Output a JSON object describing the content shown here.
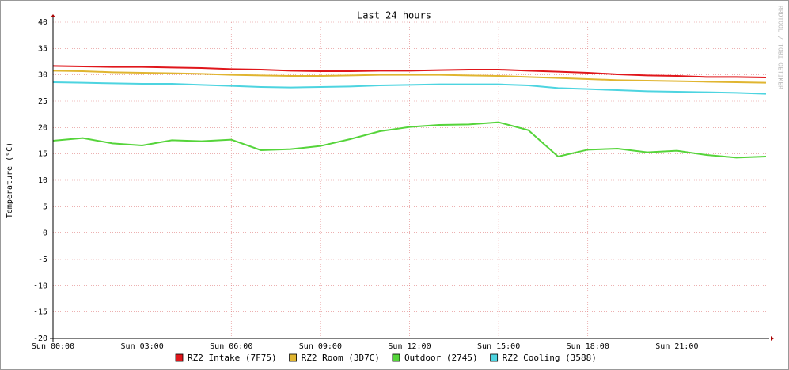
{
  "chart_data": {
    "type": "line",
    "title": "Last 24 hours",
    "y_label": "Temperature (°C)",
    "watermark": "RRDTOOL / TOBI OETIKER",
    "x": [
      0,
      1,
      2,
      3,
      4,
      5,
      6,
      7,
      8,
      9,
      10,
      11,
      12,
      13,
      14,
      15,
      16,
      17,
      18,
      19,
      20,
      21,
      22,
      23,
      24
    ],
    "xlim": [
      0,
      24
    ],
    "xticks": [
      {
        "value": 0,
        "label": "Sun 00:00"
      },
      {
        "value": 3,
        "label": "Sun 03:00"
      },
      {
        "value": 6,
        "label": "Sun 06:00"
      },
      {
        "value": 9,
        "label": "Sun 09:00"
      },
      {
        "value": 12,
        "label": "Sun 12:00"
      },
      {
        "value": 15,
        "label": "Sun 15:00"
      },
      {
        "value": 18,
        "label": "Sun 18:00"
      },
      {
        "value": 21,
        "label": "Sun 21:00"
      }
    ],
    "ylim": [
      -20,
      40
    ],
    "yticks": [
      -20,
      -15,
      -10,
      -5,
      0,
      5,
      10,
      15,
      20,
      25,
      30,
      35,
      40
    ],
    "grid": true,
    "series": [
      {
        "name": "RZ2 Intake (7F75)",
        "color": "#e0161b",
        "values": [
          31.7,
          31.6,
          31.5,
          31.5,
          31.4,
          31.3,
          31.1,
          31.0,
          30.8,
          30.7,
          30.7,
          30.8,
          30.8,
          30.9,
          31.0,
          31.0,
          30.8,
          30.6,
          30.4,
          30.1,
          29.9,
          29.8,
          29.6,
          29.6,
          29.5
        ]
      },
      {
        "name": "RZ2 Room (3D7C)",
        "color": "#e0b530",
        "values": [
          30.8,
          30.7,
          30.5,
          30.4,
          30.3,
          30.2,
          30.0,
          29.9,
          29.8,
          29.8,
          29.9,
          30.0,
          30.0,
          30.0,
          29.9,
          29.8,
          29.6,
          29.4,
          29.2,
          29.0,
          28.9,
          28.8,
          28.7,
          28.6,
          28.5
        ]
      },
      {
        "name": "Outdoor (2745)",
        "color": "#55d43a",
        "values": [
          17.5,
          18.0,
          17.0,
          16.6,
          17.6,
          17.4,
          17.7,
          15.7,
          15.9,
          16.5,
          17.8,
          19.3,
          20.1,
          20.5,
          20.6,
          21.0,
          19.5,
          14.5,
          15.8,
          16.0,
          15.3,
          15.6,
          14.8,
          14.3,
          14.5
        ]
      },
      {
        "name": "RZ2 Cooling (3588)",
        "color": "#4dd4e0",
        "values": [
          28.6,
          28.5,
          28.4,
          28.3,
          28.3,
          28.1,
          27.9,
          27.7,
          27.6,
          27.7,
          27.8,
          28.0,
          28.1,
          28.2,
          28.2,
          28.2,
          28.0,
          27.5,
          27.3,
          27.1,
          26.9,
          26.8,
          26.7,
          26.6,
          26.4
        ]
      }
    ]
  }
}
